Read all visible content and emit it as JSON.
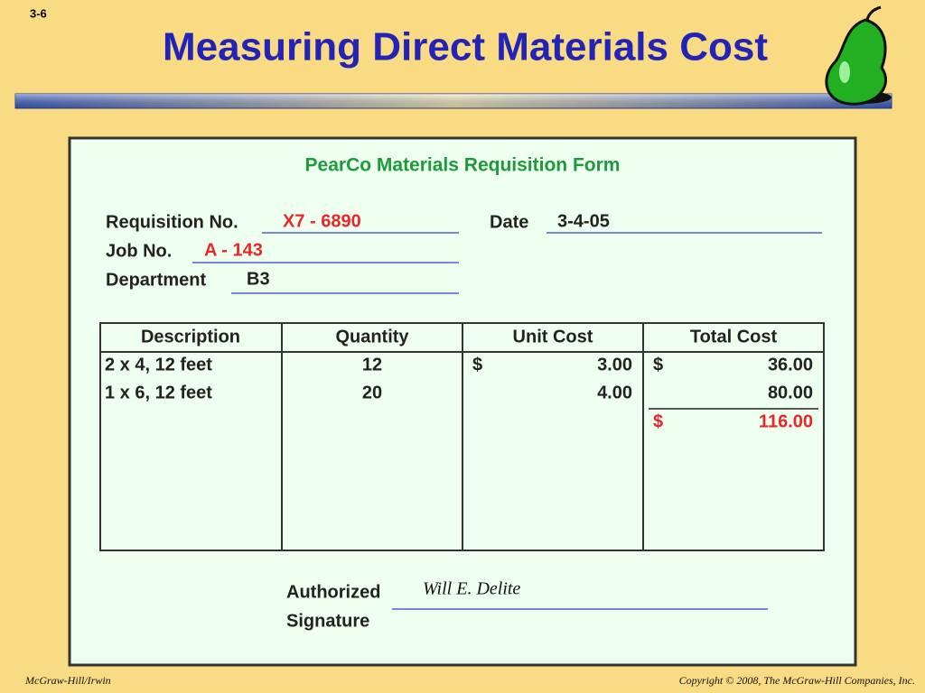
{
  "slide_number": "3-6",
  "title": "Measuring Direct Materials Cost",
  "form": {
    "title": "PearCo Materials Requisition Form",
    "requisition": {
      "label": "Requisition No.",
      "value": "X7 - 6890"
    },
    "date": {
      "label": "Date",
      "value": "3-4-05"
    },
    "job": {
      "label": "Job No.",
      "value": "A - 143"
    },
    "department": {
      "label": "Department",
      "value": "B3"
    },
    "table": {
      "headers": [
        "Description",
        "Quantity",
        "Unit Cost",
        "Total Cost"
      ],
      "rows": [
        {
          "description": "2 x 4, 12 feet",
          "quantity": "12",
          "unit_cost": {
            "currency": "$",
            "amount": "3.00"
          },
          "total_cost": {
            "currency": "$",
            "amount": "36.00"
          }
        },
        {
          "description": "1 x 6, 12 feet",
          "quantity": "20",
          "unit_cost": {
            "amount": "4.00"
          },
          "total_cost": {
            "amount": "80.00"
          }
        }
      ],
      "total": {
        "currency": "$",
        "amount": "116.00"
      }
    },
    "authorization": {
      "label_line1": "Authorized",
      "label_line2": "Signature",
      "signature": "Will E. Delite"
    }
  },
  "footer": {
    "left": "McGraw-Hill/Irwin",
    "right": "Copyright © 2008, The McGraw-Hill Companies, Inc."
  }
}
